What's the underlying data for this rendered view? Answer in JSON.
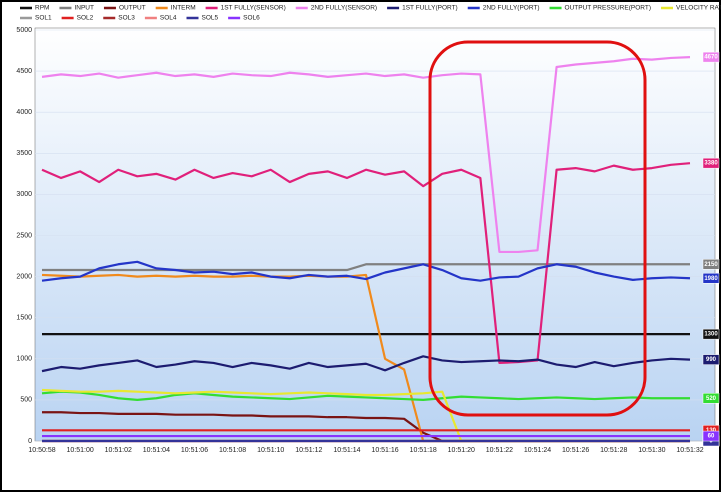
{
  "chart_data": {
    "type": "line",
    "x": [
      "10:50:58",
      "10:50:59",
      "10:51:00",
      "10:51:01",
      "10:51:02",
      "10:51:03",
      "10:51:04",
      "10:51:05",
      "10:51:06",
      "10:51:07",
      "10:51:08",
      "10:51:09",
      "10:51:10",
      "10:51:11",
      "10:51:12",
      "10:51:13",
      "10:51:14",
      "10:51:15",
      "10:51:16",
      "10:51:17",
      "10:51:18",
      "10:51:19",
      "10:51:20",
      "10:51:21",
      "10:51:22",
      "10:51:23",
      "10:51:24",
      "10:51:25",
      "10:51:26",
      "10:51:27",
      "10:51:28",
      "10:51:29",
      "10:51:30",
      "10:51:31",
      "10:51:32"
    ],
    "ylim": [
      0,
      5000
    ],
    "yticks": [
      0,
      500,
      1000,
      1500,
      2000,
      2500,
      3000,
      3500,
      4000,
      4500,
      5000
    ],
    "grid": true,
    "series": [
      {
        "name": "RPM",
        "color": "#111111",
        "values": [
          1300,
          1300,
          1300,
          1300,
          1300,
          1300,
          1300,
          1300,
          1300,
          1300,
          1300,
          1300,
          1300,
          1300,
          1300,
          1300,
          1300,
          1300,
          1300,
          1300,
          1300,
          1300,
          1300,
          1300,
          1300,
          1300,
          1300,
          1300,
          1300,
          1300,
          1300,
          1300,
          1300,
          1300,
          1300
        ]
      },
      {
        "name": "INPUT",
        "color": "#808080",
        "values": [
          2080,
          2080,
          2080,
          2080,
          2080,
          2080,
          2080,
          2080,
          2080,
          2080,
          2080,
          2080,
          2080,
          2080,
          2080,
          2080,
          2080,
          2150,
          2150,
          2150,
          2150,
          2150,
          2150,
          2150,
          2150,
          2150,
          2150,
          2150,
          2150,
          2150,
          2150,
          2150,
          2150,
          2150,
          2150
        ]
      },
      {
        "name": "OUTPUT",
        "color": "#7a1414",
        "values": [
          350,
          350,
          340,
          340,
          330,
          330,
          330,
          320,
          320,
          320,
          310,
          310,
          300,
          300,
          300,
          290,
          290,
          280,
          280,
          270,
          100,
          0,
          0,
          0,
          0,
          0,
          0,
          0,
          0,
          0,
          0,
          0,
          0,
          0,
          0
        ]
      },
      {
        "name": "INTERM",
        "color": "#f08a1c",
        "values": [
          2020,
          2010,
          2000,
          2010,
          2020,
          2000,
          2010,
          2000,
          2010,
          2000,
          2000,
          2010,
          2000,
          2000,
          2010,
          2000,
          2000,
          2020,
          1000,
          870,
          0,
          0,
          0,
          0,
          0,
          0,
          0,
          0,
          0,
          0,
          0,
          0,
          0,
          0,
          0
        ]
      },
      {
        "name": "1ST FULLY(SENSOR)",
        "color": "#e0207a",
        "values": [
          3300,
          3200,
          3280,
          3150,
          3300,
          3220,
          3250,
          3180,
          3300,
          3200,
          3260,
          3220,
          3300,
          3150,
          3250,
          3280,
          3200,
          3300,
          3240,
          3280,
          3100,
          3250,
          3300,
          3200,
          950,
          960,
          980,
          3300,
          3320,
          3280,
          3350,
          3300,
          3320,
          3360,
          3380
        ]
      },
      {
        "name": "2ND FULLY(SENSOR)",
        "color": "#ee82ee",
        "values": [
          4430,
          4460,
          4440,
          4470,
          4420,
          4450,
          4480,
          4440,
          4460,
          4430,
          4470,
          4450,
          4440,
          4480,
          4460,
          4430,
          4450,
          4470,
          4440,
          4460,
          4420,
          4450,
          4470,
          4460,
          2300,
          2300,
          2320,
          4550,
          4580,
          4600,
          4620,
          4650,
          4640,
          4660,
          4670
        ]
      },
      {
        "name": "1ST FULLY(PORT)",
        "color": "#1c1c70",
        "values": [
          850,
          900,
          880,
          920,
          950,
          980,
          900,
          930,
          970,
          950,
          900,
          950,
          920,
          880,
          950,
          900,
          920,
          940,
          860,
          950,
          1030,
          980,
          960,
          970,
          980,
          970,
          990,
          930,
          900,
          960,
          910,
          950,
          980,
          1000,
          990
        ]
      },
      {
        "name": "2ND FULLY(PORT)",
        "color": "#2435c8",
        "values": [
          1950,
          1980,
          2000,
          2100,
          2150,
          2180,
          2100,
          2080,
          2050,
          2060,
          2030,
          2050,
          2000,
          1980,
          2020,
          2000,
          2010,
          1970,
          2050,
          2100,
          2150,
          2080,
          1980,
          1950,
          1990,
          2000,
          2100,
          2150,
          2120,
          2050,
          2000,
          1960,
          1980,
          1990,
          1980
        ]
      },
      {
        "name": "OUTPUT PRESSURE(PORT)",
        "color": "#33dd33",
        "values": [
          580,
          600,
          590,
          560,
          520,
          500,
          520,
          560,
          580,
          560,
          540,
          530,
          520,
          510,
          530,
          550,
          540,
          530,
          520,
          510,
          500,
          520,
          540,
          530,
          520,
          510,
          520,
          530,
          520,
          510,
          520,
          530,
          520,
          520,
          520
        ]
      },
      {
        "name": "VELOCITY RATIO",
        "color": "#e8e830",
        "values": [
          620,
          610,
          600,
          600,
          610,
          600,
          590,
          580,
          590,
          600,
          590,
          580,
          570,
          580,
          590,
          580,
          570,
          560,
          560,
          570,
          580,
          600,
          0,
          0,
          0,
          0,
          0,
          0,
          0,
          0,
          0,
          0,
          0,
          0,
          0
        ]
      },
      {
        "name": "SOL1",
        "color": "#9a9a9a",
        "values": [
          0,
          0,
          0,
          0,
          0,
          0,
          0,
          0,
          0,
          0,
          0,
          0,
          0,
          0,
          0,
          0,
          0,
          0,
          0,
          0,
          0,
          0,
          0,
          0,
          0,
          0,
          0,
          0,
          0,
          0,
          0,
          0,
          0,
          0,
          0
        ]
      },
      {
        "name": "SOL2",
        "color": "#e02020",
        "values": [
          130,
          130,
          130,
          130,
          130,
          130,
          130,
          130,
          130,
          130,
          130,
          130,
          130,
          130,
          130,
          130,
          130,
          130,
          130,
          130,
          130,
          130,
          130,
          130,
          130,
          130,
          130,
          130,
          130,
          130,
          130,
          130,
          130,
          130,
          130
        ]
      },
      {
        "name": "SOL3",
        "color": "#a52a2a",
        "values": [
          0,
          0,
          0,
          0,
          0,
          0,
          0,
          0,
          0,
          0,
          0,
          0,
          0,
          0,
          0,
          0,
          0,
          0,
          0,
          0,
          0,
          0,
          0,
          0,
          0,
          0,
          0,
          0,
          0,
          0,
          0,
          0,
          0,
          0,
          0
        ]
      },
      {
        "name": "SOL4",
        "color": "#f08080",
        "values": [
          0,
          0,
          0,
          0,
          0,
          0,
          0,
          0,
          0,
          0,
          0,
          0,
          0,
          0,
          0,
          0,
          0,
          0,
          0,
          0,
          0,
          0,
          0,
          0,
          0,
          0,
          0,
          0,
          0,
          0,
          0,
          0,
          0,
          0,
          0
        ]
      },
      {
        "name": "SOL5",
        "color": "#333399",
        "values": [
          0,
          0,
          0,
          0,
          0,
          0,
          0,
          0,
          0,
          0,
          0,
          0,
          0,
          0,
          0,
          0,
          0,
          0,
          0,
          0,
          0,
          0,
          0,
          0,
          0,
          0,
          0,
          0,
          0,
          0,
          0,
          0,
          0,
          0,
          0
        ]
      },
      {
        "name": "SOL6",
        "color": "#8833ff",
        "values": [
          60,
          60,
          60,
          60,
          60,
          60,
          60,
          60,
          60,
          60,
          60,
          60,
          60,
          60,
          60,
          60,
          60,
          60,
          60,
          60,
          60,
          60,
          60,
          60,
          60,
          60,
          60,
          60,
          60,
          60,
          60,
          60,
          60,
          60,
          60
        ]
      }
    ]
  }
}
